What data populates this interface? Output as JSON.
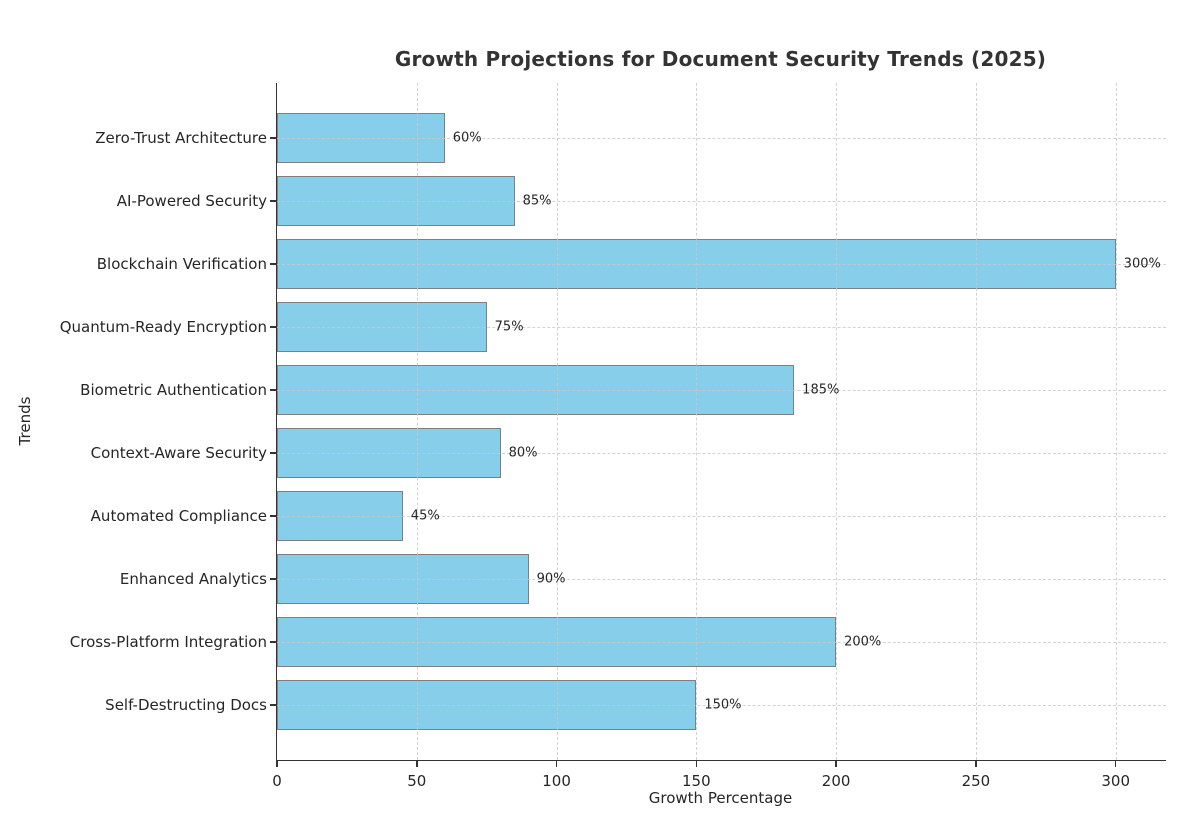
{
  "chart_data": {
    "type": "bar",
    "orientation": "horizontal",
    "title": "Growth Projections for Document Security Trends (2025)",
    "xlabel": "Growth Percentage",
    "ylabel": "Trends",
    "categories": [
      "Zero-Trust Architecture",
      "AI-Powered Security",
      "Blockchain Verification",
      "Quantum-Ready Encryption",
      "Biometric Authentication",
      "Context-Aware Security",
      "Automated Compliance",
      "Enhanced Analytics",
      "Cross-Platform Integration",
      "Self-Destructing Docs"
    ],
    "values": [
      60,
      85,
      300,
      75,
      185,
      80,
      45,
      90,
      200,
      150
    ],
    "value_labels": [
      "60%",
      "85%",
      "300%",
      "75%",
      "185%",
      "80%",
      "45%",
      "90%",
      "200%",
      "150%"
    ],
    "xticks": [
      0,
      50,
      100,
      150,
      200,
      250,
      300
    ],
    "xtick_labels": [
      "0",
      "50",
      "100",
      "150",
      "200",
      "250",
      "300"
    ],
    "xlim": [
      0,
      318
    ],
    "grid": "dashed",
    "legend": "none",
    "bar_color": "#87CEEB",
    "bar_edge_color": "#7f7f7f",
    "gridline_color": "#c9c9c9",
    "axis_color": "#333333",
    "text_color": "#262626"
  }
}
